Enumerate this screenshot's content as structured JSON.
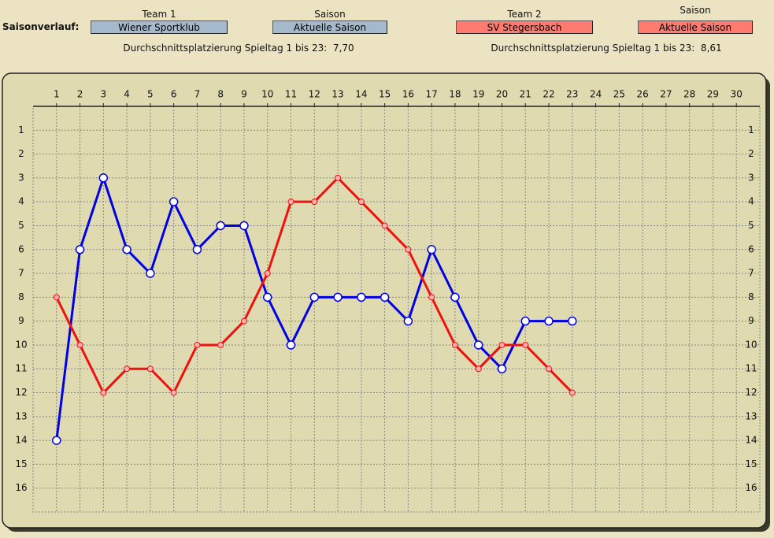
{
  "header": {
    "label": "Saisonverlauf:",
    "team1_label": "Team 1",
    "season1_label": "Saison",
    "season1_value": "Aktuelle Saison",
    "team2_label": "Team 2",
    "season2_label": "Saison",
    "season2_value": "Aktuelle Saison",
    "avg1_label": "Durchschnittsplatzierung Spieltag 1 bis 23:",
    "avg1_value": "7,70",
    "avg2_label": "Durchschnittsplatzierung Spieltag 1 bis 23:",
    "avg2_value": "8,61"
  },
  "chart_data": {
    "type": "line",
    "x": [
      1,
      2,
      3,
      4,
      5,
      6,
      7,
      8,
      9,
      10,
      11,
      12,
      13,
      14,
      15,
      16,
      17,
      18,
      19,
      20,
      21,
      22,
      23
    ],
    "series": [
      {
        "name": "Wiener Sportklub",
        "color": "#0000e6",
        "values": [
          14,
          6,
          3,
          6,
          7,
          4,
          6,
          5,
          5,
          8,
          10,
          8,
          8,
          8,
          8,
          9,
          6,
          8,
          10,
          11,
          9,
          9,
          9
        ]
      },
      {
        "name": "SV Stegersbach",
        "color": "#f01010",
        "values": [
          8,
          10,
          12,
          11,
          11,
          12,
          10,
          10,
          9,
          7,
          4,
          4,
          3,
          4,
          5,
          6,
          8,
          10,
          11,
          10,
          10,
          11,
          12
        ]
      }
    ],
    "xlim": [
      0,
      31
    ],
    "xticks": [
      1,
      2,
      3,
      4,
      5,
      6,
      7,
      8,
      9,
      10,
      11,
      12,
      13,
      14,
      15,
      16,
      17,
      18,
      19,
      20,
      21,
      22,
      23,
      24,
      25,
      26,
      27,
      28,
      29,
      30
    ],
    "ylim": [
      17,
      0
    ],
    "yticks": [
      1,
      2,
      3,
      4,
      5,
      6,
      7,
      8,
      9,
      10,
      11,
      12,
      13,
      14,
      15,
      16
    ],
    "grid": true
  }
}
